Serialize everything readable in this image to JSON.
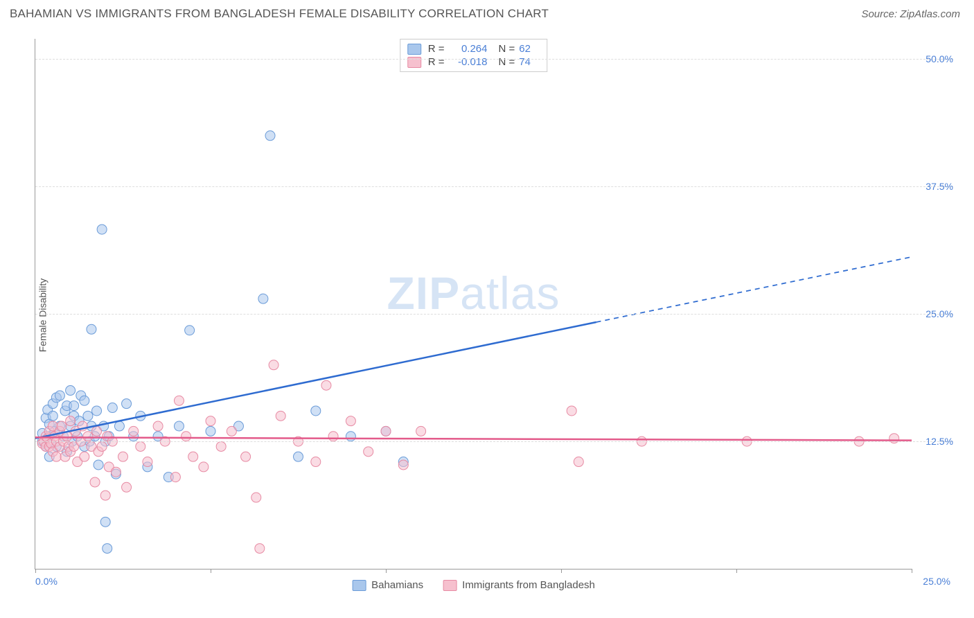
{
  "title": "BAHAMIAN VS IMMIGRANTS FROM BANGLADESH FEMALE DISABILITY CORRELATION CHART",
  "source": "Source: ZipAtlas.com",
  "ylabel": "Female Disability",
  "watermark_a": "ZIP",
  "watermark_b": "atlas",
  "chart": {
    "type": "scatter",
    "background_color": "#ffffff",
    "grid_color": "#dddddd",
    "axis_color": "#999999",
    "text_color": "#555555",
    "value_color": "#4a7fd6",
    "xlim": [
      0,
      25
    ],
    "ylim": [
      0,
      52
    ],
    "xticks": [
      0,
      5,
      10,
      15,
      20,
      25
    ],
    "xtick_labels": {
      "0": "0.0%",
      "25": "25.0%"
    },
    "yticks": [
      12.5,
      25.0,
      37.5,
      50.0
    ],
    "ytick_labels": [
      "12.5%",
      "25.0%",
      "37.5%",
      "50.0%"
    ],
    "marker_radius": 7,
    "marker_opacity": 0.55,
    "regression_line_width": 2.5
  },
  "series": [
    {
      "key": "bahamians",
      "label": "Bahamians",
      "fill": "#a9c7ec",
      "stroke": "#6a9bd8",
      "line_color": "#2e6bd0",
      "R": "0.264",
      "N": "62",
      "regression": {
        "x1": 0,
        "y1": 12.8,
        "x2_solid": 16,
        "y2_solid": 24.2,
        "x2": 25,
        "y2": 30.6
      },
      "points": [
        [
          0.2,
          12.5
        ],
        [
          0.2,
          13.3
        ],
        [
          0.3,
          14.8
        ],
        [
          0.3,
          12.0
        ],
        [
          0.35,
          15.6
        ],
        [
          0.4,
          13.0
        ],
        [
          0.4,
          14.2
        ],
        [
          0.4,
          11.0
        ],
        [
          0.5,
          15.0
        ],
        [
          0.5,
          16.2
        ],
        [
          0.55,
          13.5
        ],
        [
          0.6,
          12.0
        ],
        [
          0.6,
          16.8
        ],
        [
          0.7,
          14.0
        ],
        [
          0.7,
          17.0
        ],
        [
          0.8,
          13.0
        ],
        [
          0.85,
          15.5
        ],
        [
          0.9,
          16.0
        ],
        [
          0.9,
          11.5
        ],
        [
          1.0,
          17.5
        ],
        [
          1.0,
          14.0
        ],
        [
          1.05,
          12.5
        ],
        [
          1.1,
          16.0
        ],
        [
          1.1,
          15.0
        ],
        [
          1.2,
          13.0
        ],
        [
          1.25,
          14.5
        ],
        [
          1.3,
          17.0
        ],
        [
          1.4,
          16.5
        ],
        [
          1.4,
          12.0
        ],
        [
          1.5,
          15.0
        ],
        [
          1.55,
          12.5
        ],
        [
          1.6,
          14.0
        ],
        [
          1.6,
          23.5
        ],
        [
          1.7,
          13.0
        ],
        [
          1.75,
          15.5
        ],
        [
          1.8,
          10.2
        ],
        [
          1.9,
          33.3
        ],
        [
          1.95,
          14.0
        ],
        [
          2.0,
          12.5
        ],
        [
          2.0,
          4.6
        ],
        [
          2.05,
          2.0
        ],
        [
          2.1,
          13.0
        ],
        [
          2.2,
          15.8
        ],
        [
          2.3,
          9.3
        ],
        [
          2.4,
          14.0
        ],
        [
          2.6,
          16.2
        ],
        [
          2.8,
          13.0
        ],
        [
          3.0,
          15.0
        ],
        [
          3.2,
          10.0
        ],
        [
          3.5,
          13.0
        ],
        [
          3.8,
          9.0
        ],
        [
          4.1,
          14.0
        ],
        [
          4.4,
          23.4
        ],
        [
          5.0,
          13.5
        ],
        [
          5.8,
          14.0
        ],
        [
          6.5,
          26.5
        ],
        [
          6.7,
          42.5
        ],
        [
          7.5,
          11.0
        ],
        [
          8.0,
          15.5
        ],
        [
          9.0,
          13.0
        ],
        [
          10.0,
          13.5
        ],
        [
          10.5,
          10.5
        ]
      ]
    },
    {
      "key": "bangladesh",
      "label": "Immigrants from Bangladesh",
      "fill": "#f6c0ce",
      "stroke": "#e78aa3",
      "line_color": "#e35a8a",
      "R": "-0.018",
      "N": "74",
      "regression": {
        "x1": 0,
        "y1": 12.9,
        "x2_solid": 25,
        "y2_solid": 12.6,
        "x2": 25,
        "y2": 12.6
      },
      "points": [
        [
          0.2,
          12.3
        ],
        [
          0.25,
          12.5
        ],
        [
          0.3,
          12.0
        ],
        [
          0.3,
          13.0
        ],
        [
          0.35,
          12.8
        ],
        [
          0.4,
          12.0
        ],
        [
          0.4,
          13.5
        ],
        [
          0.45,
          12.3
        ],
        [
          0.5,
          14.0
        ],
        [
          0.5,
          11.5
        ],
        [
          0.55,
          13.0
        ],
        [
          0.6,
          12.5
        ],
        [
          0.6,
          11.0
        ],
        [
          0.7,
          13.5
        ],
        [
          0.7,
          12.0
        ],
        [
          0.75,
          14.0
        ],
        [
          0.8,
          12.5
        ],
        [
          0.85,
          11.0
        ],
        [
          0.9,
          13.0
        ],
        [
          0.95,
          12.0
        ],
        [
          1.0,
          14.5
        ],
        [
          1.0,
          11.5
        ],
        [
          1.1,
          12.0
        ],
        [
          1.15,
          13.5
        ],
        [
          1.2,
          10.5
        ],
        [
          1.3,
          12.5
        ],
        [
          1.35,
          14.0
        ],
        [
          1.4,
          11.0
        ],
        [
          1.5,
          13.0
        ],
        [
          1.6,
          12.0
        ],
        [
          1.7,
          8.5
        ],
        [
          1.75,
          13.5
        ],
        [
          1.8,
          11.5
        ],
        [
          1.9,
          12.0
        ],
        [
          2.0,
          7.2
        ],
        [
          2.05,
          13.0
        ],
        [
          2.1,
          10.0
        ],
        [
          2.2,
          12.5
        ],
        [
          2.3,
          9.5
        ],
        [
          2.5,
          11.0
        ],
        [
          2.6,
          8.0
        ],
        [
          2.8,
          13.5
        ],
        [
          3.0,
          12.0
        ],
        [
          3.2,
          10.5
        ],
        [
          3.5,
          14.0
        ],
        [
          3.7,
          12.5
        ],
        [
          4.0,
          9.0
        ],
        [
          4.1,
          16.5
        ],
        [
          4.3,
          13.0
        ],
        [
          4.5,
          11.0
        ],
        [
          4.8,
          10.0
        ],
        [
          5.0,
          14.5
        ],
        [
          5.3,
          12.0
        ],
        [
          5.6,
          13.5
        ],
        [
          6.0,
          11.0
        ],
        [
          6.3,
          7.0
        ],
        [
          6.4,
          2.0
        ],
        [
          6.8,
          20.0
        ],
        [
          7.0,
          15.0
        ],
        [
          7.5,
          12.5
        ],
        [
          8.0,
          10.5
        ],
        [
          8.3,
          18.0
        ],
        [
          8.5,
          13.0
        ],
        [
          9.0,
          14.5
        ],
        [
          9.5,
          11.5
        ],
        [
          10.0,
          13.5
        ],
        [
          10.5,
          10.2
        ],
        [
          11.0,
          13.5
        ],
        [
          15.3,
          15.5
        ],
        [
          15.5,
          10.5
        ],
        [
          17.3,
          12.5
        ],
        [
          20.3,
          12.5
        ],
        [
          23.5,
          12.5
        ],
        [
          24.5,
          12.8
        ]
      ]
    }
  ]
}
